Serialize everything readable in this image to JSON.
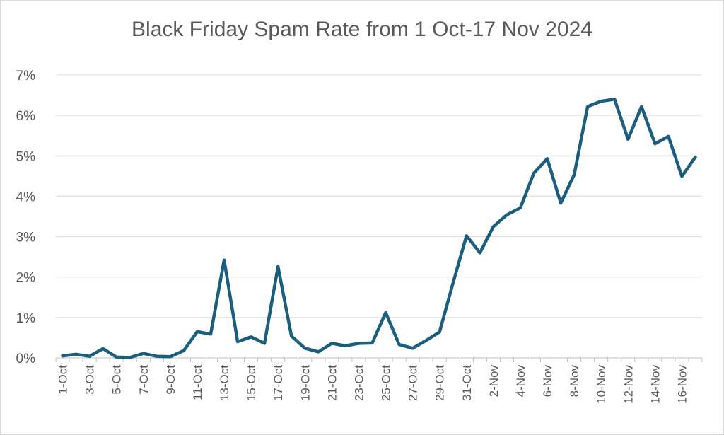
{
  "chart_data": {
    "type": "line",
    "title": "Black Friday Spam Rate from 1 Oct-17 Nov 2024",
    "xlabel": "",
    "ylabel": "",
    "ylim": [
      0,
      0.07
    ],
    "yticks": [
      "0%",
      "1%",
      "2%",
      "3%",
      "4%",
      "5%",
      "6%",
      "7%"
    ],
    "grid": true,
    "color": "#1B5E7E",
    "categories": [
      "1-Oct",
      "2-Oct",
      "3-Oct",
      "4-Oct",
      "5-Oct",
      "6-Oct",
      "7-Oct",
      "8-Oct",
      "9-Oct",
      "10-Oct",
      "11-Oct",
      "12-Oct",
      "13-Oct",
      "14-Oct",
      "15-Oct",
      "16-Oct",
      "17-Oct",
      "18-Oct",
      "19-Oct",
      "20-Oct",
      "21-Oct",
      "22-Oct",
      "23-Oct",
      "24-Oct",
      "25-Oct",
      "26-Oct",
      "27-Oct",
      "28-Oct",
      "29-Oct",
      "30-Oct",
      "31-Oct",
      "1-Nov",
      "2-Nov",
      "3-Nov",
      "4-Nov",
      "5-Nov",
      "6-Nov",
      "7-Nov",
      "8-Nov",
      "9-Nov",
      "10-Nov",
      "11-Nov",
      "12-Nov",
      "13-Nov",
      "14-Nov",
      "15-Nov",
      "16-Nov",
      "17-Nov"
    ],
    "xtick_labels": [
      "1-Oct",
      "3-Oct",
      "5-Oct",
      "7-Oct",
      "9-Oct",
      "11-Oct",
      "13-Oct",
      "15-Oct",
      "17-Oct",
      "19-Oct",
      "21-Oct",
      "23-Oct",
      "25-Oct",
      "27-Oct",
      "29-Oct",
      "31-Oct",
      "2-Nov",
      "4-Nov",
      "6-Nov",
      "8-Nov",
      "10-Nov",
      "12-Nov",
      "14-Nov",
      "16-Nov"
    ],
    "values": [
      0.0005,
      0.0009,
      0.0004,
      0.0023,
      0.0002,
      0.0001,
      0.0011,
      0.0004,
      0.0003,
      0.0018,
      0.0065,
      0.0059,
      0.0242,
      0.004,
      0.0052,
      0.0036,
      0.0226,
      0.0054,
      0.0024,
      0.0015,
      0.0036,
      0.003,
      0.0036,
      0.0037,
      0.0112,
      0.0033,
      0.0024,
      0.0043,
      0.0064,
      0.0185,
      0.0302,
      0.026,
      0.0325,
      0.0354,
      0.0371,
      0.0457,
      0.0493,
      0.0383,
      0.0453,
      0.0622,
      0.0635,
      0.064,
      0.0541,
      0.0622,
      0.053,
      0.0548,
      0.0449,
      0.0497
    ]
  }
}
